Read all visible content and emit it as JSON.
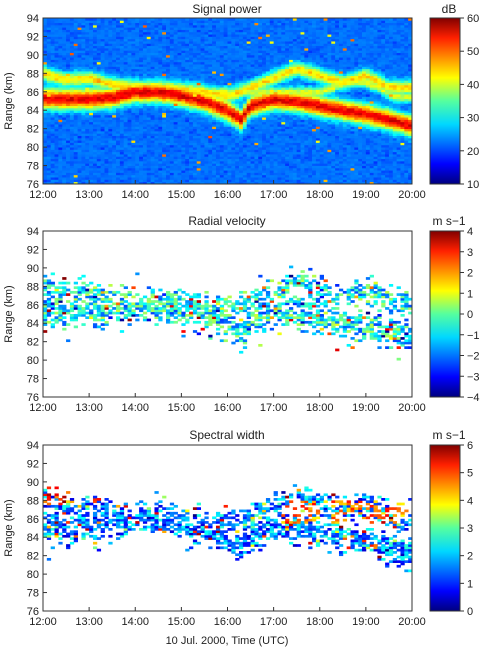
{
  "figure": {
    "xlabel": "10 Jul. 2000, Time (UTC)"
  },
  "chart_data": [
    {
      "type": "heatmap",
      "title": "Signal power",
      "ylabel": "Range (km)",
      "xlabel": "",
      "x_ticks": [
        "12:00",
        "13:00",
        "14:00",
        "15:00",
        "16:00",
        "17:00",
        "18:00",
        "19:00",
        "20:00"
      ],
      "y_ticks": [
        76,
        78,
        80,
        82,
        84,
        86,
        88,
        90,
        92,
        94
      ],
      "xlim_hours": [
        12,
        20
      ],
      "ylim": [
        76,
        94
      ],
      "colorbar": {
        "unit": "dB",
        "min": 10,
        "max": 60,
        "ticks": [
          10,
          20,
          30,
          40,
          50,
          60
        ]
      },
      "background_value": 20,
      "layers": [
        {
          "t": [
            12.0,
            12.5,
            13.0,
            13.5,
            14.0,
            14.5,
            15.0,
            15.5,
            16.0,
            16.3,
            16.5,
            17.0,
            17.5,
            18.0,
            18.5,
            19.0,
            19.5,
            20.0
          ],
          "range_km": [
            85.3,
            85.2,
            85.2,
            85.4,
            86.0,
            86.0,
            85.6,
            85.0,
            84.0,
            83.0,
            84.5,
            85.2,
            85.0,
            84.5,
            84.0,
            83.6,
            83.0,
            82.3
          ],
          "peak_db": 55,
          "half_thickness_km": 1.1
        },
        {
          "t": [
            12.0,
            12.5,
            13.0,
            13.5,
            14.0,
            14.5,
            15.0,
            15.5,
            16.0,
            16.5,
            17.0,
            17.5,
            18.0,
            18.5,
            19.0,
            19.5
          ],
          "range_km": [
            88.0,
            87.3,
            87.5,
            86.8,
            86.5,
            86.5,
            86.3,
            86.0,
            85.5,
            86.5,
            87.5,
            88.5,
            87.8,
            87.0,
            87.8,
            86.5
          ],
          "peak_db": 43,
          "half_thickness_km": 0.8
        },
        {
          "t": [
            18.0,
            18.3,
            18.6,
            19.0,
            19.3,
            19.6
          ],
          "range_km": [
            86.0,
            86.5,
            87.3,
            87.0,
            86.5,
            85.5
          ],
          "peak_db": 40,
          "half_thickness_km": 0.6
        }
      ]
    },
    {
      "type": "heatmap",
      "title": "Radial velocity",
      "ylabel": "Range (km)",
      "xlabel": "",
      "x_ticks": [
        "12:00",
        "13:00",
        "14:00",
        "15:00",
        "16:00",
        "17:00",
        "18:00",
        "19:00",
        "20:00"
      ],
      "y_ticks": [
        76,
        78,
        80,
        82,
        84,
        86,
        88,
        90,
        92,
        94
      ],
      "xlim_hours": [
        12,
        20
      ],
      "ylim": [
        76,
        94
      ],
      "colorbar": {
        "unit": "m s−1",
        "min": -4,
        "max": 4,
        "ticks": [
          -4,
          -3,
          -2,
          -1,
          0,
          1,
          2,
          3,
          4
        ]
      },
      "dominant_value_range": [
        -2.5,
        0.5
      ]
    },
    {
      "type": "heatmap",
      "title": "Spectral width",
      "ylabel": "Range (km)",
      "xlabel": "",
      "x_ticks": [
        "12:00",
        "13:00",
        "14:00",
        "15:00",
        "16:00",
        "17:00",
        "18:00",
        "19:00",
        "20:00"
      ],
      "y_ticks": [
        76,
        78,
        80,
        82,
        84,
        86,
        88,
        90,
        92,
        94
      ],
      "xlim_hours": [
        12,
        20
      ],
      "ylim": [
        76,
        94
      ],
      "colorbar": {
        "unit": "m s−1",
        "min": 0,
        "max": 6,
        "ticks": [
          0,
          1,
          2,
          3,
          4,
          5,
          6
        ]
      },
      "dominant_value_range": [
        0.5,
        2.5
      ],
      "high_value_regions": [
        {
          "t_start": 12.0,
          "t_end": 12.8,
          "range_km": [
            87.5,
            90.0
          ],
          "value": 5.0
        },
        {
          "t_start": 17.2,
          "t_end": 19.9,
          "range_km": [
            85.5,
            88.0
          ],
          "value": 4.5
        }
      ]
    }
  ]
}
